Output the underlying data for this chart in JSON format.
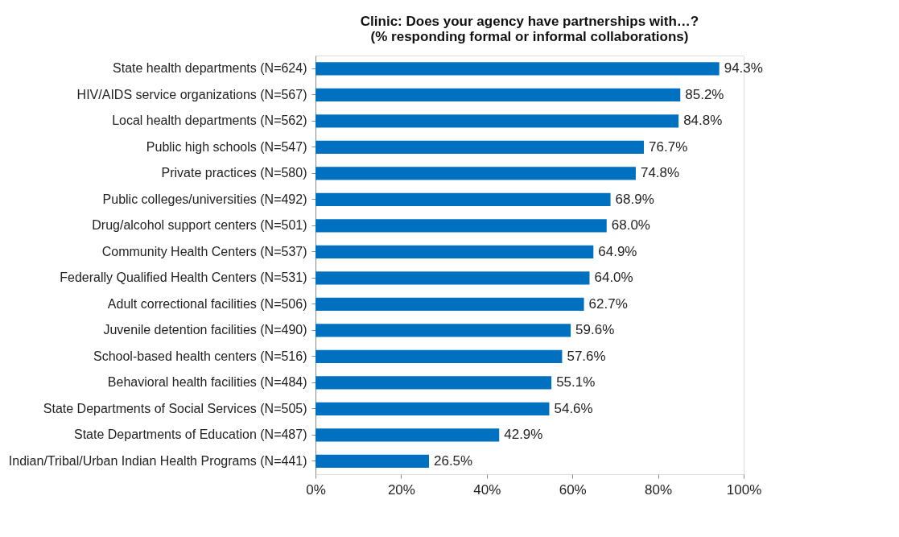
{
  "chart_data": {
    "type": "bar",
    "orientation": "horizontal",
    "title": [
      "Clinic: Does your agency have partnerships with…?",
      "(% responding formal or informal collaborations)"
    ],
    "categories": [
      "State health departments (N=624)",
      "HIV/AIDS service organizations (N=567)",
      "Local health departments (N=562)",
      "Public high schools (N=547)",
      "Private practices (N=580)",
      "Public colleges/universities (N=492)",
      "Drug/alcohol support centers (N=501)",
      "Community Health Centers (N=537)",
      "Federally Qualified Health Centers (N=531)",
      "Adult correctional facilities (N=506)",
      "Juvenile detention facilities (N=490)",
      "School-based health centers (N=516)",
      "Behavioral health facilities (N=484)",
      "State Departments of Social Services (N=505)",
      "State Departments of Education (N=487)",
      "Indian/Tribal/Urban Indian Health Programs (N=441)"
    ],
    "values": [
      94.3,
      85.2,
      84.8,
      76.7,
      74.8,
      68.9,
      68.0,
      64.9,
      64.0,
      62.7,
      59.6,
      57.6,
      55.1,
      54.6,
      42.9,
      26.5
    ],
    "value_labels": [
      "94.3%",
      "85.2%",
      "84.8%",
      "76.7%",
      "74.8%",
      "68.9%",
      "68.0%",
      "64.9%",
      "64.0%",
      "62.7%",
      "59.6%",
      "57.6%",
      "55.1%",
      "54.6%",
      "42.9%",
      "26.5%"
    ],
    "color": "#0070c0",
    "xlim": [
      0,
      100
    ],
    "xticks": [
      {
        "value": 0,
        "label": "0%"
      },
      {
        "value": 20,
        "label": "20%"
      },
      {
        "value": 40,
        "label": "40%"
      },
      {
        "value": 60,
        "label": "60%"
      },
      {
        "value": 80,
        "label": "80%"
      },
      {
        "value": 100,
        "label": "100%"
      }
    ],
    "grid": false
  }
}
